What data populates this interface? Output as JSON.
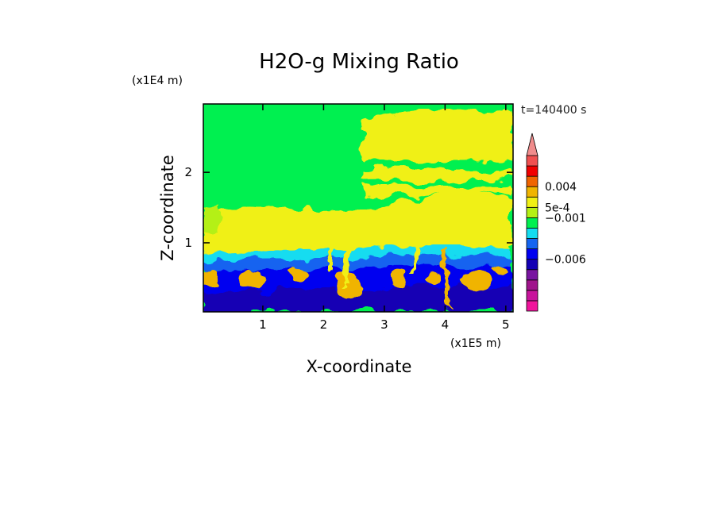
{
  "chart_data": {
    "type": "heatmap",
    "title": "H2O-g Mixing Ratio",
    "xlabel": "X-coordinate",
    "ylabel": "Z-coordinate",
    "x_unit": "(x1E5 m)",
    "y_unit": "(x1E4 m)",
    "time_label": "t=140400 s",
    "xlim": [
      0.02,
      5.12
    ],
    "ylim": [
      0.02,
      2.97
    ],
    "x_ticks": [
      {
        "value": 1,
        "label": "1"
      },
      {
        "value": 2,
        "label": "2"
      },
      {
        "value": 3,
        "label": "3"
      },
      {
        "value": 4,
        "label": "4"
      },
      {
        "value": 5,
        "label": "5"
      }
    ],
    "y_ticks": [
      {
        "value": 1,
        "label": "1"
      },
      {
        "value": 2,
        "label": "2"
      }
    ],
    "colorbar": {
      "extend": "max",
      "extend_color": "#f08c8c",
      "colors": [
        "#f0149c",
        "#c8149c",
        "#a0148c",
        "#7814a0",
        "#1400b4",
        "#0000f0",
        "#1464f0",
        "#14dcf0",
        "#00f050",
        "#b4f014",
        "#f0f014",
        "#f0b400",
        "#f06400",
        "#f00000",
        "#f05050"
      ],
      "labels": [
        {
          "index": 12,
          "text": "0.004"
        },
        {
          "index": 10,
          "text": "5e-4"
        },
        {
          "index": 9,
          "text": "−0.001"
        },
        {
          "index": 5,
          "text": "−0.006"
        }
      ]
    }
  }
}
